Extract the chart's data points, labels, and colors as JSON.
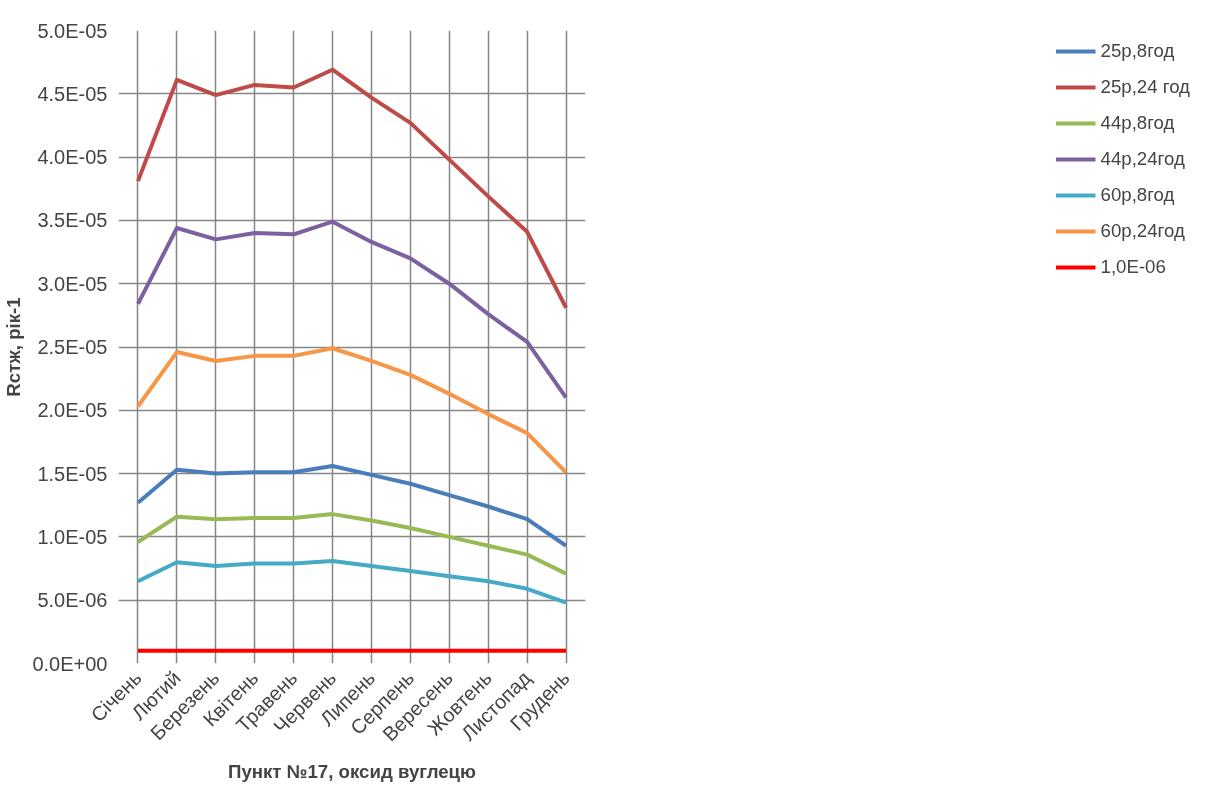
{
  "chart_data": {
    "type": "line",
    "xlabel": "Пункт №17, оксид вуглецю",
    "ylabel": "Rстж, рік-1",
    "categories": [
      "Січень",
      "Лютий",
      "Березень",
      "Квітень",
      "Травень",
      "Червень",
      "Липень",
      "Серпень",
      "Вересень",
      "Жовтень",
      "Листопад",
      "Грудень"
    ],
    "series": [
      {
        "name": "25р,8год",
        "color": "#4a7ebb",
        "values": [
          1.27e-05,
          1.53e-05,
          1.5e-05,
          1.51e-05,
          1.51e-05,
          1.56e-05,
          1.49e-05,
          1.42e-05,
          1.33e-05,
          1.24e-05,
          1.14e-05,
          9.3e-06
        ]
      },
      {
        "name": "25р,24 год",
        "color": "#be4b48",
        "values": [
          3.81e-05,
          4.61e-05,
          4.49e-05,
          4.57e-05,
          4.55e-05,
          4.69e-05,
          4.47e-05,
          4.27e-05,
          3.98e-05,
          3.69e-05,
          3.41e-05,
          2.81e-05
        ]
      },
      {
        "name": "44р,8год",
        "color": "#98b954",
        "values": [
          9.6e-06,
          1.16e-05,
          1.14e-05,
          1.15e-05,
          1.15e-05,
          1.18e-05,
          1.13e-05,
          1.07e-05,
          1e-05,
          9.3e-06,
          8.6e-06,
          7.1e-06
        ]
      },
      {
        "name": "44р,24год",
        "color": "#7d60a0",
        "values": [
          2.84e-05,
          3.44e-05,
          3.35e-05,
          3.4e-05,
          3.39e-05,
          3.49e-05,
          3.33e-05,
          3.2e-05,
          3e-05,
          2.76e-05,
          2.54e-05,
          2.1e-05
        ]
      },
      {
        "name": "60р,8год",
        "color": "#46aac5",
        "values": [
          6.5e-06,
          8e-06,
          7.7e-06,
          7.9e-06,
          7.9e-06,
          8.1e-06,
          7.7e-06,
          7.3e-06,
          6.9e-06,
          6.5e-06,
          5.9e-06,
          4.8e-06
        ]
      },
      {
        "name": "60р,24год",
        "color": "#f79646",
        "values": [
          2.03e-05,
          2.46e-05,
          2.39e-05,
          2.43e-05,
          2.43e-05,
          2.49e-05,
          2.39e-05,
          2.28e-05,
          2.13e-05,
          1.97e-05,
          1.82e-05,
          1.51e-05
        ]
      },
      {
        "name": "1,0E-06",
        "color": "#ff0000",
        "values": [
          1e-06,
          1e-06,
          1e-06,
          1e-06,
          1e-06,
          1e-06,
          1e-06,
          1e-06,
          1e-06,
          1e-06,
          1e-06,
          1e-06
        ]
      }
    ],
    "ylim": [
      0,
      5e-05
    ],
    "yticks": [
      {
        "value": 0,
        "label": "0.0E+00"
      },
      {
        "value": 5e-06,
        "label": "5.0E-06"
      },
      {
        "value": 1e-05,
        "label": "1.0E-05"
      },
      {
        "value": 1.5e-05,
        "label": "1.5E-05"
      },
      {
        "value": 2e-05,
        "label": "2.0E-05"
      },
      {
        "value": 2.5e-05,
        "label": "2.5E-05"
      },
      {
        "value": 3e-05,
        "label": "3.0E-05"
      },
      {
        "value": 3.5e-05,
        "label": "3.5E-05"
      },
      {
        "value": 4e-05,
        "label": "4.0E-05"
      },
      {
        "value": 4.5e-05,
        "label": "4.5E-05"
      },
      {
        "value": 5e-05,
        "label": "5.0E-05"
      }
    ],
    "grid": true,
    "legend": "right",
    "marker": "none",
    "line_style": "solid"
  }
}
